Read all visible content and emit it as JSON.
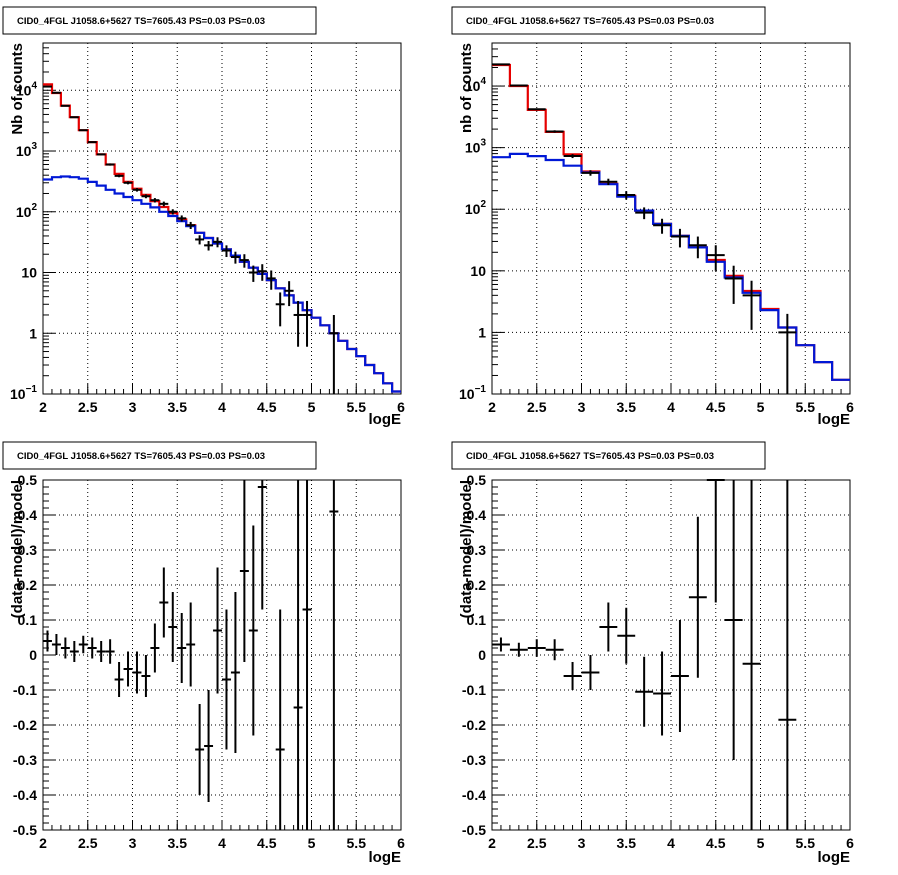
{
  "colors": {
    "data": "#000000",
    "model_total": "#e60000",
    "model_component": "#0018d6",
    "grid": "#000000",
    "background": "#ffffff"
  },
  "chart_data": [
    {
      "type": "line",
      "title": "CID0_4FGL J1058.6+5627 TS=7605.43 PS=0.03 PS=0.03",
      "xlabel": "logE",
      "ylabel": "Nb of counts",
      "xlim": [
        2,
        6
      ],
      "ylim": [
        0.1,
        60000
      ],
      "log_y": true,
      "grid": true,
      "x_ticks": [
        "2",
        "2.5",
        "3",
        "3.5",
        "4",
        "4.5",
        "5",
        "5.5",
        "6"
      ],
      "y_ticks": [
        {
          "v": 0.1,
          "base": "10",
          "exp": "−1"
        },
        {
          "v": 1,
          "label": "1"
        },
        {
          "v": 10,
          "label": "10"
        },
        {
          "v": 100,
          "base": "10",
          "exp": "2"
        },
        {
          "v": 1000,
          "base": "10",
          "exp": "3"
        },
        {
          "v": 10000,
          "base": "10",
          "exp": "4"
        }
      ],
      "bin_edges": [
        2,
        2.1,
        2.2,
        2.3,
        2.4,
        2.5,
        2.6,
        2.7,
        2.8,
        2.9,
        3.0,
        3.1,
        3.2,
        3.3,
        3.4,
        3.5,
        3.6,
        3.7,
        3.8,
        3.9,
        4.0,
        4.1,
        4.2,
        4.3,
        4.4,
        4.5,
        4.6,
        4.7,
        4.8,
        4.9,
        5.0,
        5.1,
        5.2,
        5.3,
        5.4,
        5.5,
        5.6,
        5.7,
        5.8,
        5.9,
        6.0
      ],
      "series": [
        {
          "role": "model_total",
          "values": [
            12500,
            9000,
            5600,
            3600,
            2200,
            1400,
            880,
            600,
            420,
            310,
            240,
            190,
            150,
            120,
            95,
            75,
            60,
            45,
            37,
            30,
            24,
            19,
            15,
            12,
            9.5,
            7.5,
            5.5,
            4.2,
            3.2,
            2.4,
            1.8,
            1.35,
            1.0,
            0.75,
            0.55,
            0.42,
            0.3,
            0.22,
            0.15,
            0.11
          ]
        },
        {
          "role": "model_component",
          "values": [
            340,
            370,
            380,
            370,
            350,
            310,
            270,
            230,
            200,
            175,
            155,
            135,
            118,
            100,
            85,
            70,
            58,
            45,
            37,
            30,
            24,
            19,
            15,
            12,
            9.5,
            7.5,
            5.5,
            4.2,
            3.2,
            2.4,
            1.8,
            1.35,
            1.0,
            0.75,
            0.55,
            0.42,
            0.3,
            0.22,
            0.15,
            0.11
          ]
        },
        {
          "role": "data",
          "points": [
            {
              "x": 2.05,
              "y": 11500,
              "lo": 11300,
              "hi": 11700
            },
            {
              "x": 2.15,
              "y": 9100,
              "lo": 8900,
              "hi": 9300
            },
            {
              "x": 2.25,
              "y": 5550,
              "lo": 5400,
              "hi": 5700
            },
            {
              "x": 2.35,
              "y": 3600,
              "lo": 3500,
              "hi": 3700
            },
            {
              "x": 2.45,
              "y": 2200,
              "lo": 2150,
              "hi": 2250
            },
            {
              "x": 2.55,
              "y": 1400,
              "lo": 1360,
              "hi": 1440
            },
            {
              "x": 2.65,
              "y": 880,
              "lo": 850,
              "hi": 910
            },
            {
              "x": 2.75,
              "y": 600,
              "lo": 575,
              "hi": 625
            },
            {
              "x": 2.85,
              "y": 390,
              "lo": 370,
              "hi": 410
            },
            {
              "x": 2.95,
              "y": 300,
              "lo": 283,
              "hi": 317
            },
            {
              "x": 3.05,
              "y": 230,
              "lo": 215,
              "hi": 245
            },
            {
              "x": 3.15,
              "y": 180,
              "lo": 167,
              "hi": 193
            },
            {
              "x": 3.25,
              "y": 155,
              "lo": 142,
              "hi": 168
            },
            {
              "x": 3.35,
              "y": 135,
              "lo": 123,
              "hi": 147
            },
            {
              "x": 3.45,
              "y": 100,
              "lo": 90,
              "hi": 110
            },
            {
              "x": 3.55,
              "y": 78,
              "lo": 69,
              "hi": 87
            },
            {
              "x": 3.65,
              "y": 60,
              "lo": 52,
              "hi": 68
            },
            {
              "x": 3.75,
              "y": 35,
              "lo": 29,
              "hi": 41
            },
            {
              "x": 3.85,
              "y": 28,
              "lo": 23,
              "hi": 33
            },
            {
              "x": 3.95,
              "y": 32,
              "lo": 26,
              "hi": 38
            },
            {
              "x": 4.05,
              "y": 23,
              "lo": 18,
              "hi": 28
            },
            {
              "x": 4.15,
              "y": 18,
              "lo": 14,
              "hi": 22
            },
            {
              "x": 4.25,
              "y": 16,
              "lo": 12,
              "hi": 20
            },
            {
              "x": 4.35,
              "y": 10,
              "lo": 7,
              "hi": 13
            },
            {
              "x": 4.45,
              "y": 10.5,
              "lo": 7.3,
              "hi": 13.7
            },
            {
              "x": 4.55,
              "y": 8,
              "lo": 5.2,
              "hi": 10.8
            },
            {
              "x": 4.65,
              "y": 3,
              "lo": 1.3,
              "hi": 4.7
            },
            {
              "x": 4.75,
              "y": 5,
              "lo": 2.8,
              "hi": 7.2
            },
            {
              "x": 4.85,
              "y": 2,
              "lo": 0.6,
              "hi": 3.4
            },
            {
              "x": 4.95,
              "y": 2,
              "lo": 0.6,
              "hi": 3.4
            },
            {
              "x": 5.25,
              "y": 1,
              "lo": 0.1,
              "hi": 2
            }
          ]
        }
      ]
    },
    {
      "type": "line",
      "title": "CID0_4FGL J1058.6+5627 TS=7605.43 PS=0.03 PS=0.03",
      "xlabel": "logE",
      "ylabel": "nb of counts",
      "xlim": [
        2,
        6
      ],
      "ylim": [
        0.1,
        50000
      ],
      "log_y": true,
      "grid": true,
      "x_ticks": [
        "2",
        "2.5",
        "3",
        "3.5",
        "4",
        "4.5",
        "5",
        "5.5",
        "6"
      ],
      "y_ticks": [
        {
          "v": 0.1,
          "base": "10",
          "exp": "−1"
        },
        {
          "v": 1,
          "label": "1"
        },
        {
          "v": 10,
          "label": "10"
        },
        {
          "v": 100,
          "base": "10",
          "exp": "2"
        },
        {
          "v": 1000,
          "base": "10",
          "exp": "3"
        },
        {
          "v": 10000,
          "base": "10",
          "exp": "4"
        }
      ],
      "bin_edges": [
        2,
        2.2,
        2.4,
        2.6,
        2.8,
        3.0,
        3.2,
        3.4,
        3.6,
        3.8,
        4.0,
        4.2,
        4.4,
        4.6,
        4.8,
        5.0,
        5.2,
        5.4,
        5.6,
        5.8,
        6.0
      ],
      "series": [
        {
          "role": "model_total",
          "values": [
            22000,
            10000,
            4100,
            1800,
            780,
            410,
            260,
            165,
            95,
            58,
            37,
            24,
            15,
            8.3,
            4.7,
            2.4,
            1.2,
            0.62,
            0.33,
            0.17
          ]
        },
        {
          "role": "model_component",
          "values": [
            700,
            790,
            730,
            630,
            510,
            395,
            255,
            160,
            95,
            58,
            37,
            24,
            14,
            7.8,
            4.4,
            2.3,
            1.2,
            0.62,
            0.33,
            0.17
          ]
        },
        {
          "role": "data",
          "points": [
            {
              "x": 2.1,
              "y": 22500,
              "lo": 22200,
              "hi": 22800
            },
            {
              "x": 2.3,
              "y": 10200,
              "lo": 10000,
              "hi": 10400
            },
            {
              "x": 2.5,
              "y": 4200,
              "lo": 4070,
              "hi": 4330
            },
            {
              "x": 2.7,
              "y": 1830,
              "lo": 1745,
              "hi": 1915
            },
            {
              "x": 2.9,
              "y": 730,
              "lo": 677,
              "hi": 783
            },
            {
              "x": 3.1,
              "y": 390,
              "lo": 350,
              "hi": 430
            },
            {
              "x": 3.3,
              "y": 280,
              "lo": 247,
              "hi": 313
            },
            {
              "x": 3.5,
              "y": 170,
              "lo": 144,
              "hi": 196
            },
            {
              "x": 3.7,
              "y": 88,
              "lo": 69,
              "hi": 107
            },
            {
              "x": 3.9,
              "y": 55,
              "lo": 40,
              "hi": 70
            },
            {
              "x": 4.1,
              "y": 36,
              "lo": 24,
              "hi": 48
            },
            {
              "x": 4.3,
              "y": 26,
              "lo": 16,
              "hi": 36
            },
            {
              "x": 4.5,
              "y": 18,
              "lo": 10,
              "hi": 26
            },
            {
              "x": 4.7,
              "y": 7.5,
              "lo": 2.9,
              "hi": 12.1
            },
            {
              "x": 4.9,
              "y": 4,
              "lo": 1.1,
              "hi": 6.9
            },
            {
              "x": 5.3,
              "y": 1,
              "lo": 0.1,
              "hi": 2
            }
          ]
        }
      ]
    },
    {
      "type": "scatter",
      "title": "CID0_4FGL J1058.6+5627 TS=7605.43 PS=0.03 PS=0.03",
      "xlabel": "logE",
      "ylabel": "(data-model)/model",
      "xlim": [
        2,
        6
      ],
      "ylim": [
        -0.5,
        0.5
      ],
      "grid": true,
      "x_ticks": [
        "2",
        "2.5",
        "3",
        "3.5",
        "4",
        "4.5",
        "5",
        "5.5",
        "6"
      ],
      "y_ticks": [
        "-0.5",
        "-0.4",
        "-0.3",
        "-0.2",
        "-0.1",
        "0",
        "0.1",
        "0.2",
        "0.3",
        "0.4",
        "0.5"
      ],
      "bin_half_width": 0.05,
      "points": [
        {
          "x": 2.05,
          "y": 0.04,
          "err": 0.03
        },
        {
          "x": 2.15,
          "y": 0.03,
          "err": 0.03
        },
        {
          "x": 2.25,
          "y": 0.02,
          "err": 0.03
        },
        {
          "x": 2.35,
          "y": 0.01,
          "err": 0.03
        },
        {
          "x": 2.45,
          "y": 0.03,
          "err": 0.025
        },
        {
          "x": 2.55,
          "y": 0.02,
          "err": 0.03
        },
        {
          "x": 2.65,
          "y": 0.01,
          "err": 0.03
        },
        {
          "x": 2.75,
          "y": 0.01,
          "err": 0.035
        },
        {
          "x": 2.85,
          "y": -0.07,
          "err": 0.05
        },
        {
          "x": 2.95,
          "y": -0.04,
          "err": 0.05
        },
        {
          "x": 3.05,
          "y": -0.05,
          "err": 0.06
        },
        {
          "x": 3.15,
          "y": -0.06,
          "err": 0.06
        },
        {
          "x": 3.25,
          "y": 0.02,
          "err": 0.07
        },
        {
          "x": 3.35,
          "y": 0.15,
          "err": 0.1
        },
        {
          "x": 3.45,
          "y": 0.08,
          "err": 0.1
        },
        {
          "x": 3.55,
          "y": 0.02,
          "err": 0.1
        },
        {
          "x": 3.65,
          "y": 0.03,
          "err": 0.12
        },
        {
          "x": 3.75,
          "y": -0.27,
          "err": 0.13
        },
        {
          "x": 3.85,
          "y": -0.26,
          "err": 0.16
        },
        {
          "x": 3.95,
          "y": 0.07,
          "err": 0.18
        },
        {
          "x": 4.05,
          "y": -0.07,
          "err": 0.2
        },
        {
          "x": 4.15,
          "y": -0.05,
          "err": 0.23
        },
        {
          "x": 4.25,
          "y": 0.24,
          "err": 0.26
        },
        {
          "x": 4.35,
          "y": 0.07,
          "err": 0.3
        },
        {
          "x": 4.45,
          "y": 0.48,
          "err": 0.35
        },
        {
          "x": 4.65,
          "y": -0.27,
          "err": 0.4
        },
        {
          "x": 4.85,
          "y": -0.15,
          "err": 0.7
        },
        {
          "x": 4.95,
          "y": 0.13,
          "err": 0.7
        },
        {
          "x": 5.25,
          "y": 0.41,
          "err": 1.0
        }
      ]
    },
    {
      "type": "scatter",
      "title": "CID0_4FGL J1058.6+5627 TS=7605.43 PS=0.03 PS=0.03",
      "xlabel": "logE",
      "ylabel": "(data-model)/model",
      "xlim": [
        2,
        6
      ],
      "ylim": [
        -0.5,
        0.5
      ],
      "grid": true,
      "x_ticks": [
        "2",
        "2.5",
        "3",
        "3.5",
        "4",
        "4.5",
        "5",
        "5.5",
        "6"
      ],
      "y_ticks": [
        "-0.5",
        "-0.4",
        "-0.3",
        "-0.2",
        "-0.1",
        "0",
        "0.1",
        "0.2",
        "0.3",
        "0.4",
        "0.5"
      ],
      "bin_half_width": 0.1,
      "points": [
        {
          "x": 2.1,
          "y": 0.03,
          "err": 0.02
        },
        {
          "x": 2.3,
          "y": 0.015,
          "err": 0.02
        },
        {
          "x": 2.5,
          "y": 0.02,
          "err": 0.025
        },
        {
          "x": 2.7,
          "y": 0.015,
          "err": 0.03
        },
        {
          "x": 2.9,
          "y": -0.06,
          "err": 0.04
        },
        {
          "x": 3.1,
          "y": -0.05,
          "err": 0.05
        },
        {
          "x": 3.3,
          "y": 0.08,
          "err": 0.07
        },
        {
          "x": 3.5,
          "y": 0.055,
          "err": 0.08
        },
        {
          "x": 3.7,
          "y": -0.105,
          "err": 0.1
        },
        {
          "x": 3.9,
          "y": -0.11,
          "err": 0.12
        },
        {
          "x": 4.1,
          "y": -0.06,
          "err": 0.16
        },
        {
          "x": 4.3,
          "y": 0.165,
          "err": 0.23
        },
        {
          "x": 4.5,
          "y": 0.5,
          "err": 0.35
        },
        {
          "x": 4.7,
          "y": 0.1,
          "err": 0.4
        },
        {
          "x": 4.9,
          "y": -0.025,
          "err": 0.6
        },
        {
          "x": 5.3,
          "y": -0.185,
          "err": 0.9
        }
      ]
    }
  ]
}
